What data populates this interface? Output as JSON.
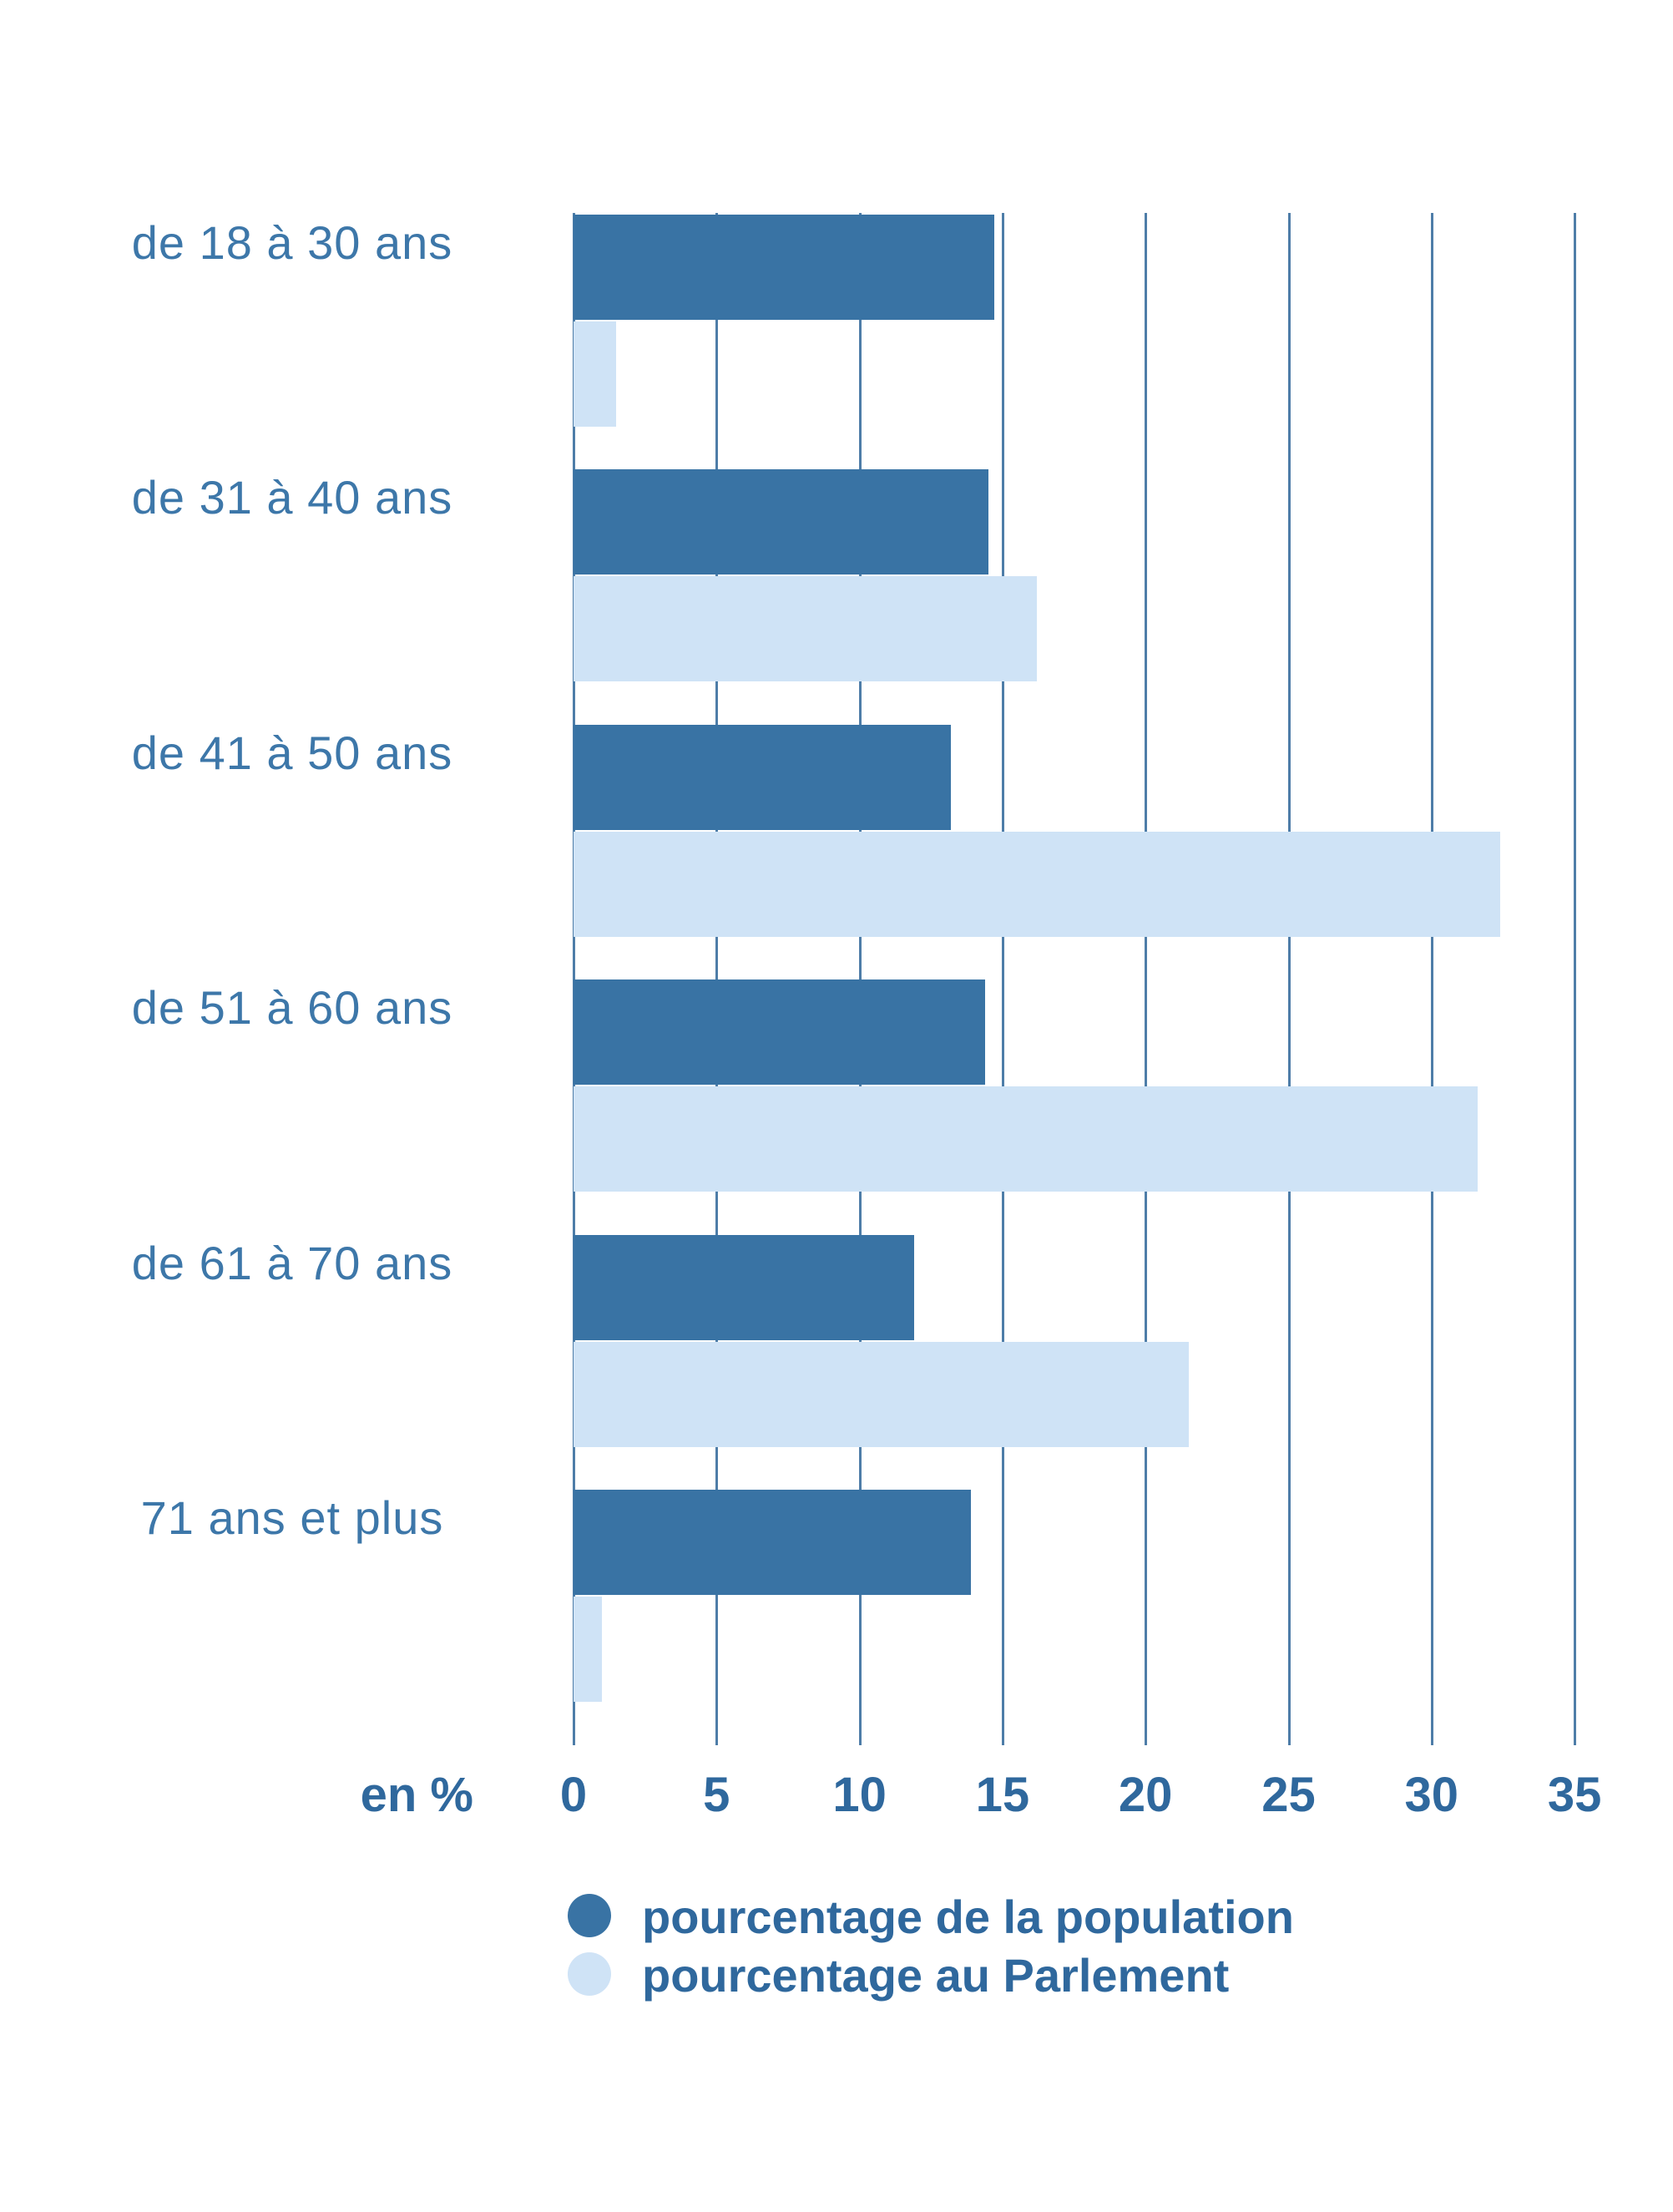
{
  "chart_data": {
    "type": "bar",
    "orientation": "horizontal",
    "title": "",
    "categories": [
      "de 18 à 30 ans",
      "de 31 à 40 ans",
      "de 41 à 50 ans",
      "de 51 à 60 ans",
      "de 61 à 70 ans",
      "71 ans et plus"
    ],
    "series": [
      {
        "name": "pourcentage de la population",
        "color": "#3973A4",
        "values": [
          14.7,
          14.5,
          13.2,
          14.4,
          11.9,
          13.9
        ]
      },
      {
        "name": "pourcentage au Parlement",
        "color": "#CFE3F6",
        "values": [
          1.5,
          16.2,
          32.4,
          31.6,
          21.5,
          1.0
        ]
      }
    ],
    "x_ticks": [
      0,
      5,
      10,
      15,
      20,
      25,
      30,
      35
    ],
    "xlim": [
      0,
      35
    ],
    "axis_unit_label": "en %",
    "grid": "vertical-only",
    "legend_position": "bottom"
  },
  "colors": {
    "background": "#FFFFFF",
    "gridline": "#4E7DA8",
    "category_label": "#3D77A9",
    "tick_label": "#2F689D",
    "legend_text": "#2F689D"
  }
}
